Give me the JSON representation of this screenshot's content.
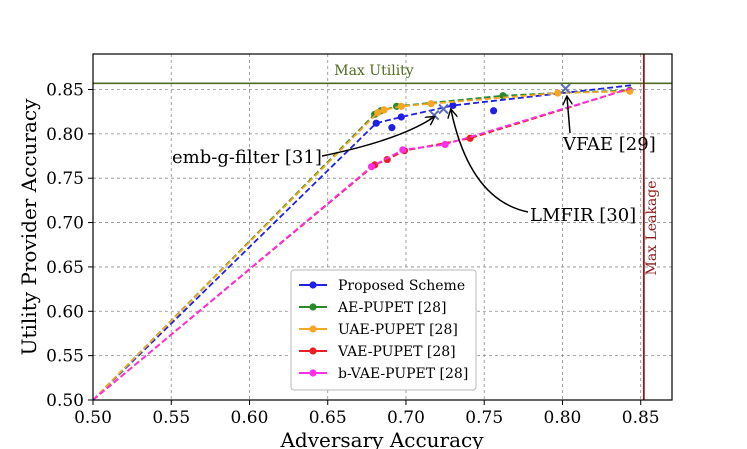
{
  "chart_data": {
    "type": "line",
    "xlabel": "Adversary Accuracy",
    "ylabel": "Utility Provider Accuracy",
    "xlim": [
      0.5,
      0.87
    ],
    "ylim": [
      0.5,
      0.89
    ],
    "grid": true,
    "legend_position": "bottom-center",
    "xticks": [
      0.5,
      0.55,
      0.6,
      0.65,
      0.7,
      0.75,
      0.8,
      0.85
    ],
    "xtick_labels": [
      "0.50",
      "0.55",
      "0.60",
      "0.65",
      "0.70",
      "0.75",
      "0.80",
      "0.85"
    ],
    "yticks": [
      0.5,
      0.55,
      0.6,
      0.65,
      0.7,
      0.75,
      0.8,
      0.85
    ],
    "ytick_labels": [
      "0.50",
      "0.55",
      "0.60",
      "0.65",
      "0.70",
      "0.75",
      "0.80",
      "0.85"
    ],
    "reference_lines": {
      "max_utility": {
        "label": "Max Utility",
        "y": 0.857,
        "color": "#4f6b1f"
      },
      "max_leakage": {
        "label": "Max Leakage",
        "x": 0.852,
        "color": "#8b1a1a"
      }
    },
    "series": [
      {
        "name": "Proposed Scheme",
        "color": "#1f1fe6",
        "frontier": [
          [
            0.5,
            0.5
          ],
          [
            0.681,
            0.812
          ],
          [
            0.697,
            0.819
          ],
          [
            0.73,
            0.832
          ],
          [
            0.845,
            0.855
          ]
        ],
        "points": [
          [
            0.681,
            0.812
          ],
          [
            0.691,
            0.807
          ],
          [
            0.697,
            0.819
          ],
          [
            0.73,
            0.832
          ],
          [
            0.756,
            0.826
          ]
        ]
      },
      {
        "name": "AE-PUPET [28]",
        "color": "#2a8a2a",
        "frontier": [
          [
            0.5,
            0.5
          ],
          [
            0.68,
            0.822
          ],
          [
            0.684,
            0.826
          ],
          [
            0.694,
            0.831
          ],
          [
            0.762,
            0.843
          ],
          [
            0.797,
            0.846
          ],
          [
            0.843,
            0.849
          ]
        ],
        "points": [
          [
            0.68,
            0.822
          ],
          [
            0.684,
            0.826
          ],
          [
            0.694,
            0.831
          ],
          [
            0.762,
            0.843
          ],
          [
            0.843,
            0.849
          ]
        ]
      },
      {
        "name": "UAE-PUPET [28]",
        "color": "#f5a623",
        "frontier": [
          [
            0.5,
            0.5
          ],
          [
            0.682,
            0.824
          ],
          [
            0.686,
            0.827
          ],
          [
            0.697,
            0.831
          ],
          [
            0.716,
            0.834
          ],
          [
            0.797,
            0.846
          ],
          [
            0.843,
            0.848
          ]
        ],
        "points": [
          [
            0.682,
            0.824
          ],
          [
            0.686,
            0.827
          ],
          [
            0.697,
            0.831
          ],
          [
            0.716,
            0.834
          ],
          [
            0.797,
            0.846
          ],
          [
            0.843,
            0.848
          ]
        ]
      },
      {
        "name": "VAE-PUPET [28]",
        "color": "#ee1c25",
        "frontier": [
          [
            0.5,
            0.5
          ],
          [
            0.68,
            0.765
          ],
          [
            0.688,
            0.771
          ],
          [
            0.699,
            0.781
          ],
          [
            0.741,
            0.795
          ],
          [
            0.845,
            0.852
          ]
        ],
        "points": [
          [
            0.68,
            0.765
          ],
          [
            0.688,
            0.771
          ],
          [
            0.699,
            0.781
          ],
          [
            0.741,
            0.795
          ]
        ]
      },
      {
        "name": "b-VAE-PUPET [28]",
        "color": "#ff2fe6",
        "frontier": [
          [
            0.5,
            0.5
          ],
          [
            0.678,
            0.763
          ],
          [
            0.698,
            0.782
          ],
          [
            0.725,
            0.788
          ],
          [
            0.845,
            0.852
          ]
        ],
        "points": [
          [
            0.678,
            0.763
          ],
          [
            0.698,
            0.782
          ],
          [
            0.725,
            0.788
          ]
        ]
      }
    ],
    "baselines": [
      {
        "label": "emb-g-filter [31]",
        "x": 0.718,
        "y": 0.821,
        "marker": "x"
      },
      {
        "label": "LMFIR [30]",
        "x": 0.724,
        "y": 0.828,
        "marker": "x"
      },
      {
        "label": "VFAE [29]",
        "x": 0.802,
        "y": 0.851,
        "marker": "x"
      }
    ]
  }
}
